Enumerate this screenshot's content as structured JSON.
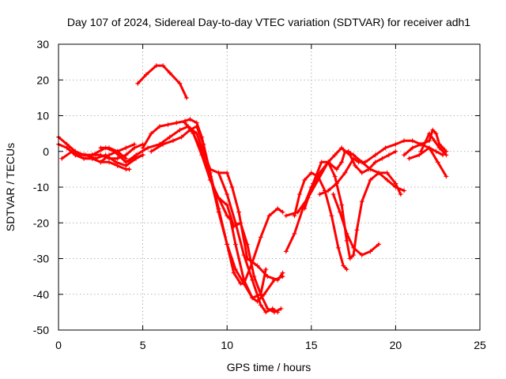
{
  "chart_data": {
    "type": "scatter",
    "title": "Day 107 of 2024, Sidereal Day-to-day VTEC variation (SDTVAR) for receiver adh1",
    "xlabel": "GPS time / hours",
    "ylabel": "SDTVAR / TECUs",
    "xlim": [
      0,
      25
    ],
    "ylim": [
      -50,
      30
    ],
    "xticks": [
      0,
      5,
      10,
      15,
      20,
      25
    ],
    "yticks": [
      -50,
      -40,
      -30,
      -20,
      -10,
      0,
      10,
      20,
      30
    ],
    "grid": true,
    "marker": "+",
    "color": "#ff0000",
    "series": [
      {
        "x": [
          0,
          0.5,
          1,
          1.5,
          2,
          2.5,
          3,
          3.5,
          4,
          4.5,
          5
        ],
        "y": [
          4,
          2,
          0,
          -1,
          -1,
          -1,
          -2,
          -2,
          -1,
          1,
          2
        ]
      },
      {
        "x": [
          0,
          0.5,
          1,
          1.5,
          2,
          2.5,
          3,
          3.5,
          4,
          4.2
        ],
        "y": [
          2,
          1,
          -1,
          -2,
          -2,
          -3,
          -3,
          -4,
          -5,
          -5
        ]
      },
      {
        "x": [
          0.2,
          0.8,
          1.5,
          2,
          2.8,
          3.3,
          4,
          4.5,
          5
        ],
        "y": [
          -2,
          0,
          -1,
          -1,
          1,
          0,
          -3,
          -2,
          -1
        ]
      },
      {
        "x": [
          0.5,
          1,
          1.5,
          2,
          2.5,
          3,
          3.5,
          4,
          4.5
        ],
        "y": [
          1,
          -1,
          -2,
          -2,
          -3,
          -1,
          0,
          1,
          2
        ]
      },
      {
        "x": [
          1,
          1.6,
          2.2,
          2.8,
          3.4,
          4,
          4.6,
          5
        ],
        "y": [
          -1,
          -1,
          -2,
          -1,
          -3,
          -4,
          -2,
          -1
        ]
      },
      {
        "x": [
          2.5,
          3,
          3.5,
          4
        ],
        "y": [
          1,
          1,
          0,
          -2
        ]
      },
      {
        "x": [
          4.7,
          5.2,
          5.8,
          6.2,
          6.6,
          7.2,
          7.6
        ],
        "y": [
          19,
          21.5,
          24,
          24,
          22,
          19,
          15
        ]
      },
      {
        "x": [
          5,
          5.5,
          6,
          6.5,
          7,
          7.5,
          7.8,
          8.2,
          8.5,
          9,
          9.5,
          10,
          10.4,
          10.8,
          11,
          11.5,
          12,
          12.5,
          13,
          13.3
        ],
        "y": [
          1,
          5,
          7,
          7.5,
          8,
          8.5,
          9,
          8,
          4,
          -6,
          -16,
          -26,
          -34,
          -37,
          -37,
          -31,
          -24,
          -18,
          -16,
          -17
        ]
      },
      {
        "x": [
          5.5,
          6.2,
          6.8,
          7.3,
          7.8,
          8.2,
          8.6,
          9,
          9.5,
          10,
          10.5,
          11,
          11.5,
          11.8,
          12.2,
          12.8,
          13.3
        ],
        "y": [
          0,
          2,
          3,
          4,
          6,
          7,
          2,
          -7,
          -17,
          -26,
          -33,
          -37,
          -41,
          -42,
          -40,
          -36,
          -35
        ]
      },
      {
        "x": [
          4,
          4.6,
          5.3,
          6,
          6.6,
          7.2,
          7.7,
          8.2,
          8.6,
          9,
          9.5,
          10,
          10.5,
          11,
          11.5,
          12,
          12.3,
          12.7,
          13
        ],
        "y": [
          -3,
          -1,
          1,
          2,
          4,
          6,
          7,
          5,
          0,
          -5,
          -6,
          -12,
          -20,
          -29,
          -36,
          -43,
          -45,
          -44,
          -45
        ]
      },
      {
        "x": [
          7.5,
          8,
          8.5,
          9,
          9.5,
          10,
          10.4,
          10.8,
          11.2,
          11.6,
          12,
          12.4,
          12.8,
          13.2
        ],
        "y": [
          8,
          5,
          0,
          -8,
          -13,
          -15,
          -21,
          -20,
          -26,
          -35,
          -40,
          -44,
          -45,
          -44
        ]
      },
      {
        "x": [
          8,
          8.5,
          9,
          9.5,
          10,
          10.2,
          10.5,
          11,
          11.5,
          12,
          12.3
        ],
        "y": [
          5,
          -1,
          -8,
          -13,
          -18,
          -19,
          -26,
          -36,
          -41,
          -40,
          -33
        ]
      },
      {
        "x": [
          9.5,
          10,
          10.3,
          10.7,
          11.2,
          11.8,
          12.4,
          13,
          13.3
        ],
        "y": [
          -6,
          -6,
          -10,
          -17,
          -30,
          -32,
          -35,
          -36,
          -34
        ]
      },
      {
        "x": [
          13.5,
          14,
          14.5,
          15,
          15.5,
          16,
          16.5,
          16.8,
          17,
          17.2,
          17.5,
          18,
          18.5,
          19,
          19.5,
          20,
          20.5
        ],
        "y": [
          -28,
          -23,
          -16,
          -10,
          -6,
          -3,
          -5,
          -3,
          0,
          0,
          -1,
          -3,
          -5,
          -6,
          -8,
          -10,
          -11
        ]
      },
      {
        "x": [
          14,
          14.3,
          14.6,
          15,
          15.4,
          15.8,
          16.2,
          16.6,
          16.9,
          17.1
        ],
        "y": [
          -18,
          -12,
          -8,
          -6,
          -7,
          -11,
          -18,
          -27,
          -32,
          -33
        ]
      },
      {
        "x": [
          14.6,
          15.1,
          15.6,
          16,
          16.4,
          16.8,
          17.1,
          17.3,
          17.5,
          17.7,
          18,
          18.5,
          19,
          19.5,
          20,
          20.3
        ],
        "y": [
          -16,
          -9,
          -3,
          -3,
          -7,
          -15,
          -25,
          -30,
          -29,
          -22,
          -14,
          -8,
          -6,
          -6,
          -9,
          -12
        ]
      },
      {
        "x": [
          13.5,
          14.2,
          14.8,
          15.4,
          16,
          16.4,
          16.8,
          17,
          17.3,
          17.6,
          18,
          18.4,
          18.8,
          19.2,
          19.6,
          20
        ],
        "y": [
          -18,
          -17,
          -13,
          -8,
          -3,
          -1,
          1,
          0,
          -1,
          -4,
          -6,
          -5,
          -3,
          -2,
          -1,
          0
        ]
      },
      {
        "x": [
          15.5,
          16,
          16.5,
          17,
          17.5,
          17.8,
          18.2,
          18.8,
          19.4,
          20,
          20.5,
          21,
          21.5,
          22,
          22.4,
          22.8
        ],
        "y": [
          -12,
          -11,
          -9,
          -6,
          -2,
          -3,
          -3,
          -1,
          1,
          2,
          3,
          3,
          2,
          1,
          0,
          -1
        ]
      },
      {
        "x": [
          16.3,
          16.7,
          17.1,
          17.5,
          18,
          18.5,
          19
        ],
        "y": [
          -12,
          -17,
          -23,
          -27,
          -29,
          -28,
          -26
        ]
      },
      {
        "x": [
          20.5,
          21,
          21.5,
          22,
          22.2,
          22.4,
          22.6,
          22.8,
          23
        ],
        "y": [
          -1,
          1,
          2,
          3,
          6,
          5,
          2,
          1,
          0
        ]
      },
      {
        "x": [
          20.8,
          21.4,
          22,
          22.5,
          23
        ],
        "y": [
          -2,
          -1,
          1,
          -3,
          -7
        ]
      },
      {
        "x": [
          21.5,
          22,
          22.3,
          22.6,
          23
        ],
        "y": [
          0,
          5,
          3,
          1,
          -1
        ]
      }
    ]
  }
}
